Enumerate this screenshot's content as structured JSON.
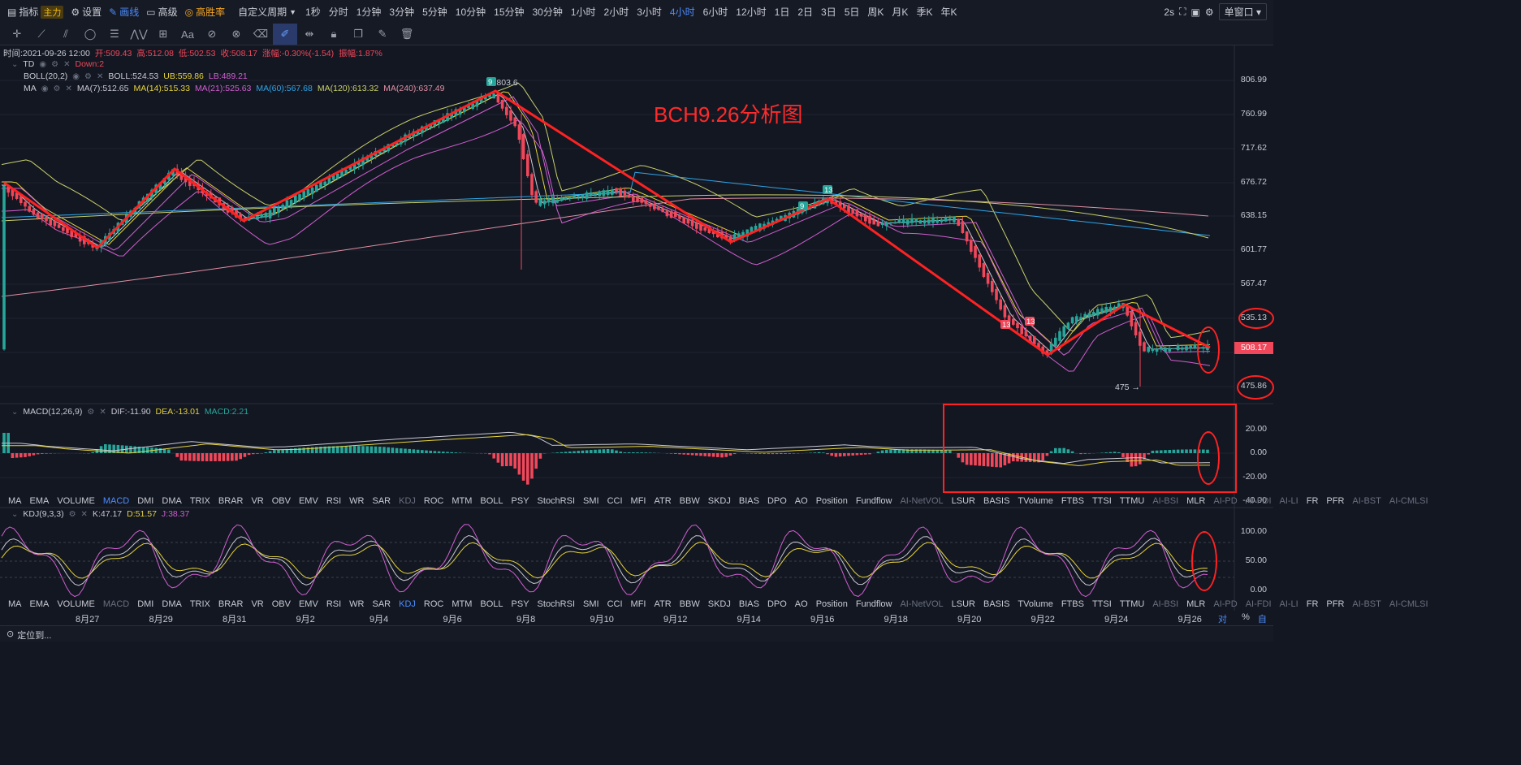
{
  "topbar": {
    "indicator_label": "指标",
    "main_tag": "主力",
    "settings_label": "设置",
    "draw_label": "画线",
    "advanced_label": "高级",
    "winrate_label": "高胜率",
    "custom_period_label": "自定义周期",
    "periods": [
      "1秒",
      "分时",
      "1分钟",
      "3分钟",
      "5分钟",
      "10分钟",
      "15分钟",
      "30分钟",
      "1小时",
      "2小时",
      "3小时",
      "4小时",
      "6小时",
      "12小时",
      "1日",
      "2日",
      "3日",
      "5日",
      "周K",
      "月K",
      "季K",
      "年K"
    ],
    "active_period": "4小时",
    "refresh": "2s",
    "window_mode": "单窗口"
  },
  "info": {
    "time": "时间:2021-09-26 12:00",
    "open": "开:509.43",
    "high": "高:512.08",
    "low": "低:502.53",
    "close": "收:508.17",
    "change": "涨幅:-0.30%(-1.54)",
    "amplitude": "振幅:1.87%"
  },
  "legends": {
    "td_name": "TD",
    "td_value": "Down:2",
    "boll_name": "BOLL(20,2)",
    "boll_mid": "BOLL:524.53",
    "boll_ub": "UB:559.86",
    "boll_lb": "LB:489.21",
    "ma_name": "MA",
    "ma7": "MA(7):512.65",
    "ma14": "MA(14):515.33",
    "ma21": "MA(21):525.63",
    "ma60": "MA(60):567.68",
    "ma120": "MA(120):613.32",
    "ma240": "MA(240):637.49",
    "macd_name": "MACD(12,26,9)",
    "macd_dif": "DIF:-11.90",
    "macd_dea": "DEA:-13.01",
    "macd_val": "MACD:2.21",
    "kdj_name": "KDJ(9,3,3)",
    "kdj_k": "K:47.17",
    "kdj_d": "D:51.57",
    "kdj_j": "J:38.37"
  },
  "colors": {
    "up": "#26a69a",
    "down": "#f0475a",
    "annotation": "#ff2222",
    "ma7": "#c8c8d2",
    "ma14": "#e5d23a",
    "ma21": "#d05fd0",
    "ma60": "#2fa4e7",
    "ma120": "#c9d06a",
    "ma240": "#e08fa3"
  },
  "annotation_title": "BCH9.26分析图",
  "price_axis": [
    "806.99",
    "760.99",
    "717.62",
    "676.72",
    "638.15",
    "601.77",
    "567.47",
    "535.13",
    "475.86"
  ],
  "current_price": "508.17",
  "high_marker": "803.6",
  "low_marker": "475",
  "td_markers": [
    "9",
    "13",
    "9",
    "13",
    "13"
  ],
  "macd_axis": [
    "20.00",
    "0.00",
    "-20.00",
    "-40.00"
  ],
  "kdj_axis": [
    "100.00",
    "50.00",
    "0.00"
  ],
  "indicator_tabs": [
    "MA",
    "EMA",
    "VOLUME",
    "MACD",
    "DMI",
    "DMA",
    "TRIX",
    "BRAR",
    "VR",
    "OBV",
    "EMV",
    "RSI",
    "WR",
    "SAR",
    "KDJ",
    "ROC",
    "MTM",
    "BOLL",
    "PSY",
    "StochRSI",
    "SMI",
    "CCI",
    "MFI",
    "ATR",
    "BBW",
    "SKDJ",
    "BIAS",
    "DPO",
    "AO",
    "Position",
    "Fundflow",
    "AI-NetVOL",
    "LSUR",
    "BASIS",
    "TVolume",
    "FTBS",
    "TTSI",
    "TTMU",
    "AI-BSI",
    "MLR",
    "AI-PD",
    "AI-FDI",
    "AI-LI",
    "FR",
    "PFR",
    "AI-BST",
    "AI-CMLSI"
  ],
  "dates": [
    "8月27",
    "8月29",
    "8月31",
    "9月2",
    "9月4",
    "9月6",
    "9月8",
    "9月10",
    "9月12",
    "9月14",
    "9月16",
    "9月18",
    "9月20",
    "9月22",
    "9月24",
    "9月26"
  ],
  "axis_mode": {
    "log": "对数",
    "percent": "%",
    "auto": "自动"
  },
  "locate_label": "定位到..."
}
